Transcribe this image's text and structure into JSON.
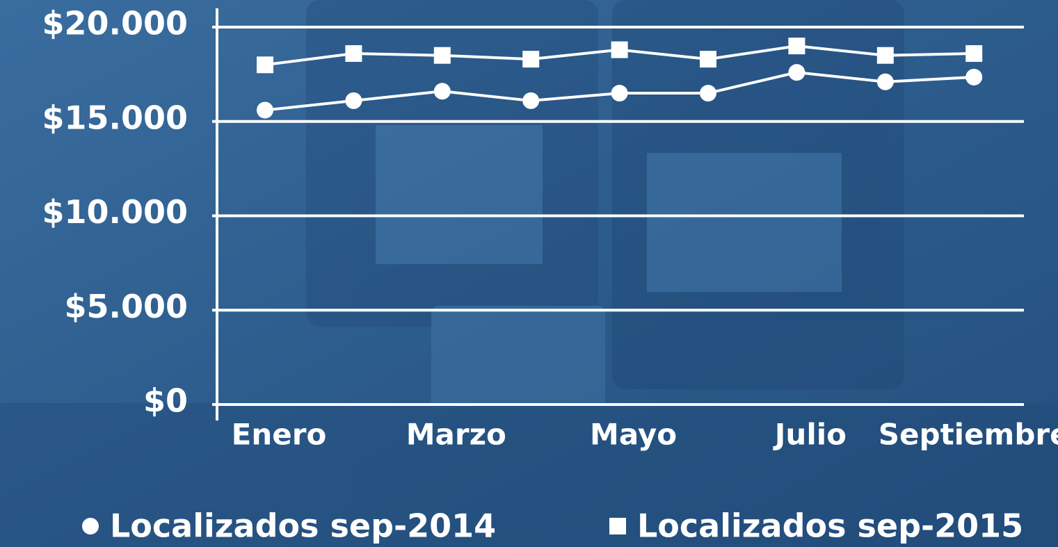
{
  "chart_data": {
    "type": "line",
    "categories": [
      "Enero",
      null,
      "Marzo",
      null,
      "Mayo",
      null,
      "Julio",
      null,
      "Septiembre"
    ],
    "series": [
      {
        "name": "Localizados sep-2014",
        "color": "#ffffff",
        "marker": "circle",
        "values": [
          15600,
          16100,
          16600,
          16100,
          16500,
          16500,
          17600,
          17100,
          17350
        ]
      },
      {
        "name": "Localizados sep-2015",
        "color": "#ffffff",
        "marker": "square",
        "values": [
          18000,
          18600,
          18500,
          18300,
          18800,
          18300,
          19000,
          18500,
          18600
        ]
      }
    ],
    "ylim": [
      0,
      20000
    ],
    "yticks": [
      {
        "value": 0,
        "label": "$0"
      },
      {
        "value": 5000,
        "label": "$5.000"
      },
      {
        "value": 10000,
        "label": "$10.000"
      },
      {
        "value": 15000,
        "label": "$15.000"
      },
      {
        "value": 20000,
        "label": "$20.000"
      }
    ],
    "grid": true
  }
}
